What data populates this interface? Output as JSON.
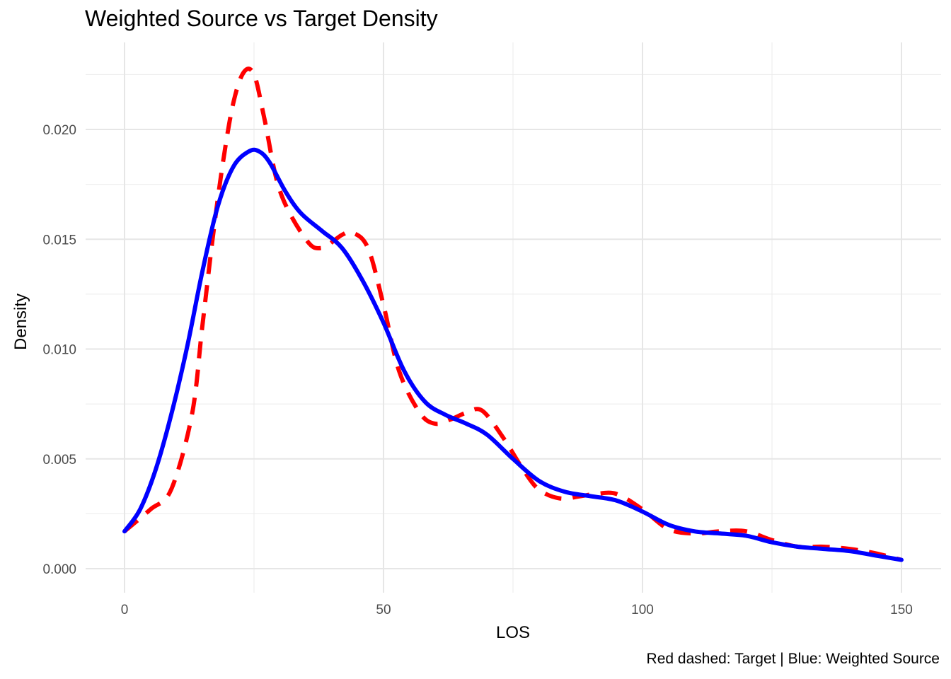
{
  "chart_data": {
    "type": "line",
    "title": "Weighted Source vs Target Density",
    "xlabel": "LOS",
    "ylabel": "Density",
    "caption": "Red dashed: Target | Blue: Weighted Source",
    "xlim": [
      0,
      150
    ],
    "ylim": [
      0,
      0.023
    ],
    "x_ticks": [
      0,
      50,
      100,
      150
    ],
    "x_tick_labels": [
      "0",
      "50",
      "100",
      "150"
    ],
    "y_ticks": [
      0.0,
      0.005,
      0.01,
      0.015,
      0.02
    ],
    "y_tick_labels": [
      "0.000",
      "0.005",
      "0.010",
      "0.015",
      "0.020"
    ],
    "grid": true,
    "series": [
      {
        "key": "target",
        "color": "#ff0000",
        "style": "dashed",
        "x": [
          0,
          5,
          9,
          13,
          15,
          17,
          19,
          21,
          23,
          25,
          27,
          30,
          35,
          38,
          42,
          44,
          47,
          50,
          53,
          57,
          60,
          63,
          66,
          69,
          73,
          77,
          80,
          84,
          88,
          91,
          95,
          100,
          105,
          110,
          115,
          120,
          125,
          130,
          135,
          140,
          145,
          150
        ],
        "y": [
          0.0017,
          0.0027,
          0.0036,
          0.007,
          0.011,
          0.015,
          0.0185,
          0.0212,
          0.0226,
          0.0225,
          0.0205,
          0.0172,
          0.015,
          0.0146,
          0.0152,
          0.0153,
          0.0146,
          0.012,
          0.009,
          0.0071,
          0.0066,
          0.0068,
          0.0071,
          0.0072,
          0.006,
          0.0045,
          0.0036,
          0.0032,
          0.0033,
          0.0034,
          0.0034,
          0.0027,
          0.0018,
          0.0016,
          0.0017,
          0.0017,
          0.0013,
          0.001,
          0.001,
          0.0009,
          0.0007,
          0.0004
        ]
      },
      {
        "key": "weighted_source",
        "color": "#0000ff",
        "style": "solid",
        "x": [
          0,
          3,
          6,
          9,
          12,
          15,
          18,
          21,
          24,
          26,
          28,
          31,
          34,
          38,
          42,
          46,
          50,
          54,
          58,
          62,
          66,
          70,
          75,
          80,
          85,
          90,
          95,
          100,
          105,
          110,
          115,
          120,
          125,
          130,
          135,
          140,
          145,
          150
        ],
        "y": [
          0.0017,
          0.0027,
          0.0045,
          0.007,
          0.01,
          0.0135,
          0.0165,
          0.0183,
          0.019,
          0.019,
          0.0185,
          0.0172,
          0.0162,
          0.0154,
          0.0146,
          0.0131,
          0.0112,
          0.009,
          0.0076,
          0.007,
          0.0066,
          0.0061,
          0.005,
          0.004,
          0.0035,
          0.0033,
          0.0031,
          0.0026,
          0.002,
          0.0017,
          0.0016,
          0.0015,
          0.0012,
          0.001,
          0.0009,
          0.0008,
          0.0006,
          0.0004
        ]
      }
    ]
  }
}
